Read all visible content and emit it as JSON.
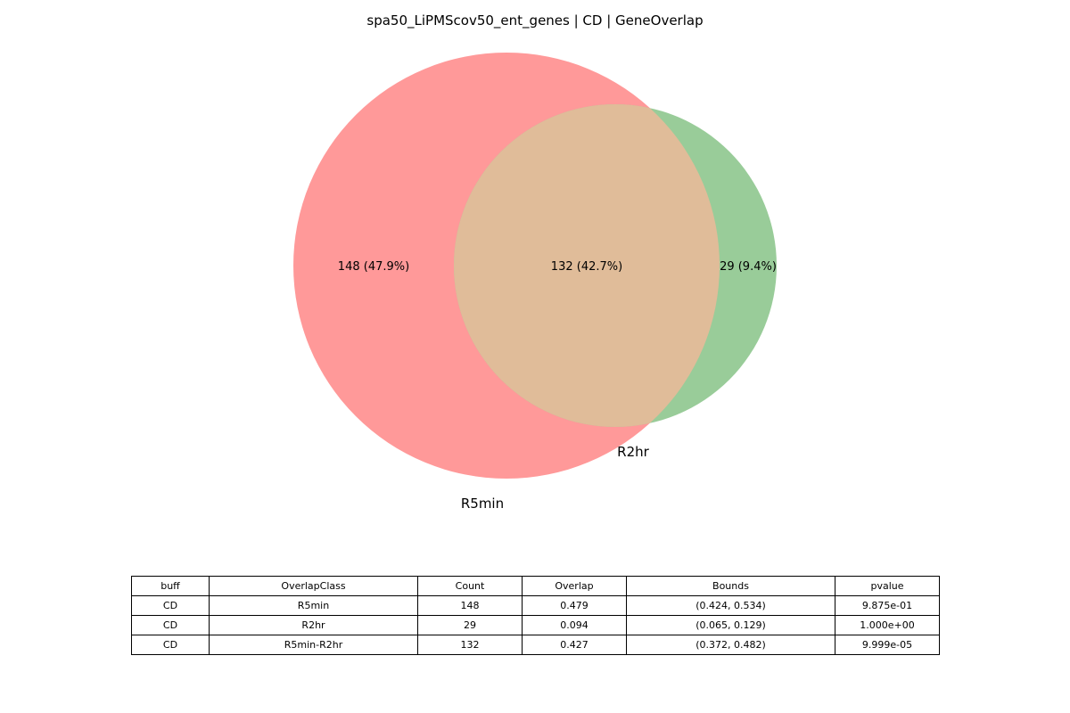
{
  "chart_data": {
    "type": "venn",
    "title": "spa50_LiPMScov50_ent_genes | CD | GeneOverlap",
    "sets": [
      {
        "name": "R5min",
        "color": "#ff9999",
        "size": 280
      },
      {
        "name": "R2hr",
        "color": "#99cc99",
        "size": 161
      }
    ],
    "intersection_color": "#e0bc99",
    "regions": [
      {
        "id": "R5min_only",
        "count": 148,
        "label": "148 (47.9%)"
      },
      {
        "id": "intersection",
        "count": 132,
        "label": "132 (42.7%)"
      },
      {
        "id": "R2hr_only",
        "count": 29,
        "label": "29 (9.4%)"
      }
    ]
  },
  "table": {
    "columns": [
      "buff",
      "OverlapClass",
      "Count",
      "Overlap",
      "Bounds",
      "pvalue"
    ],
    "rows": [
      [
        "CD",
        "R5min",
        "148",
        "0.479",
        "(0.424, 0.534)",
        "9.875e-01"
      ],
      [
        "CD",
        "R2hr",
        "29",
        "0.094",
        "(0.065, 0.129)",
        "1.000e+00"
      ],
      [
        "CD",
        "R5min-R2hr",
        "132",
        "0.427",
        "(0.372, 0.482)",
        "9.999e-05"
      ]
    ]
  }
}
